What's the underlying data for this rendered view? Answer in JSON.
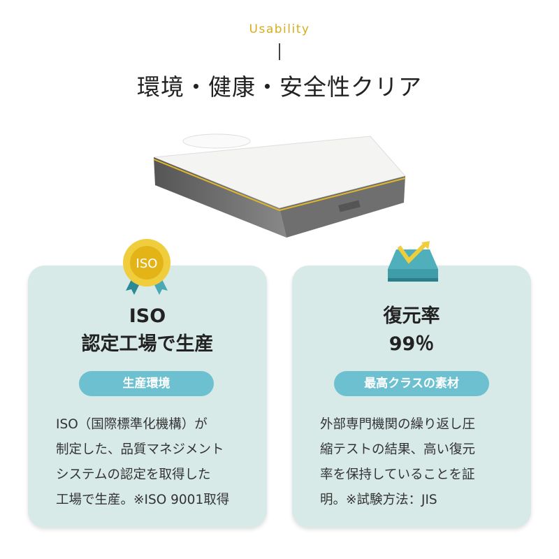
{
  "header": {
    "eyebrow": "Usability",
    "title": "環境・健康・安全性クリア"
  },
  "colors": {
    "accent": "#d7ad1c",
    "card_bg": "#d8eae7",
    "pill": "#6cc0cf"
  },
  "cards": [
    {
      "icon": "iso-badge-icon",
      "badge_text": "ISO",
      "heading1": "ISO",
      "heading2": "認定工場で生産",
      "pill": "生産環境",
      "body": "ISO（国際標準化機構）が\n制定した、品質マネジメント\nシステムの認定を取得した\n工場で生産。※ISO 9001取得"
    },
    {
      "icon": "mattress-rebound-icon",
      "heading1": "復元率",
      "heading2": "99％",
      "pill": "最高クラスの素材",
      "body": "外部専門機関の繰り返し圧\n縮テストの結果、高い復元\n率を保持していることを証\n明。※試験方法：JIS"
    }
  ]
}
